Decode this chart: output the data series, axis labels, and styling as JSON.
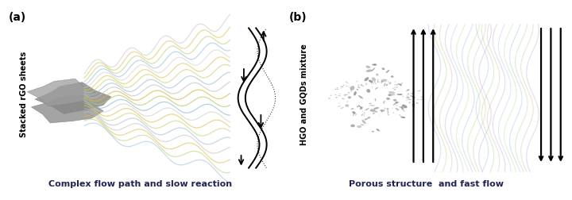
{
  "label_a": "(a)",
  "label_b": "(b)",
  "side_label_a": "Stacked rGO sheets",
  "side_label_b": "HGO and GQDs mixture",
  "caption_a": "Complex flow path and slow reaction",
  "caption_b": "Porous structure  and fast flow",
  "bg_color": "#ffffff",
  "wave_colors_a": [
    "#90b8d8",
    "#b8c860",
    "#d8b840",
    "#c0c0c0",
    "#a0bcd0",
    "#c8d070",
    "#e0c050",
    "#d0d0d0"
  ],
  "wave_colors_b_left": [
    "#b0c8e8",
    "#c0d8a0",
    "#d8c8b0",
    "#c8b8d8",
    "#b8d0e8",
    "#c8e0a8"
  ],
  "wave_colors_b_right": [
    "#b0c8e8",
    "#c0d8a0",
    "#d8c8b0",
    "#c8b8d8",
    "#b8d0e8",
    "#c8e0a8"
  ],
  "arrow_color": "#000000",
  "label_fontsize": 10,
  "caption_fontsize": 8,
  "side_label_fontsize": 7
}
